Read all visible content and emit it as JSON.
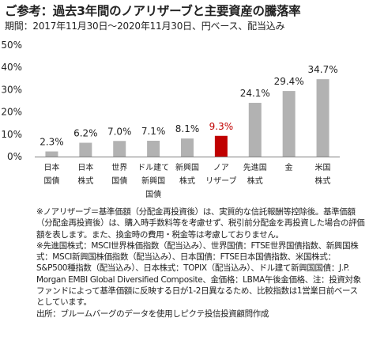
{
  "title": "ご参考：過去3年間のノアリザーブと主要資産の騰落率",
  "subtitle": "期間：2017年11月30日～2020年11月30日、円ベース、配当込み",
  "chart_data": {
    "type": "bar",
    "categories": [
      [
        "日本",
        "国債"
      ],
      [
        "日本",
        "株式"
      ],
      [
        "世界",
        "国債"
      ],
      [
        "ドル建て",
        "新興国",
        "国債"
      ],
      [
        "新興国",
        "株式"
      ],
      [
        "ノア",
        "リザーブ"
      ],
      [
        "先進国",
        "株式"
      ],
      [
        "金"
      ],
      [
        "米国",
        "株式"
      ]
    ],
    "values": [
      2.3,
      6.2,
      7.0,
      7.1,
      8.1,
      9.3,
      24.1,
      29.4,
      34.7
    ],
    "value_labels": [
      "2.3%",
      "6.2%",
      "7.0%",
      "7.1%",
      "8.1%",
      "9.3%",
      "24.1%",
      "29.4%",
      "34.7%"
    ],
    "ylim": [
      0,
      50
    ],
    "yticks": [
      "0%",
      "10%",
      "20%",
      "30%",
      "40%",
      "50%"
    ],
    "ytick_values": [
      0,
      10,
      20,
      30,
      40,
      50
    ],
    "highlight_index": 5,
    "grid": false,
    "colors": {
      "bar": "#b2b2b2",
      "highlight_bar": "#c00000",
      "highlight_label": "#c00000",
      "text": "#222222"
    }
  },
  "notes": [
    "※ノアリザーブ＝基準価額（分配金再投資後）は、実質的な信託報酬等控除後。基準価額（分配金再投資後）は、購入時手数料等を考慮せず、税引前分配金を再投資した場合の評価額を表します。また、換金時の費用・税金等は考慮しておりません。",
    "※先進国株式：MSCI世界株価指数（配当込み）、世界国債：FTSE世界国債指数、新興国株式：MSCI新興国株価指数（配当込み）、日本国債：FTSE日本国債指数、米国株式：S&P500種指数（配当込み）、日本株式：TOPIX（配当込み）、ドル建て新興国国債：J.P. Morgan EMBI Global Diversified Composite、金価格：LBMA午後金価格、注：投資対象ファンドによって基準価額に反映する日が1-2日異なるため、比較指数は1営業日前ベースとしています。",
    "出所：ブルームバーグのデータを使用しピクテ投信投資顧問作成"
  ]
}
